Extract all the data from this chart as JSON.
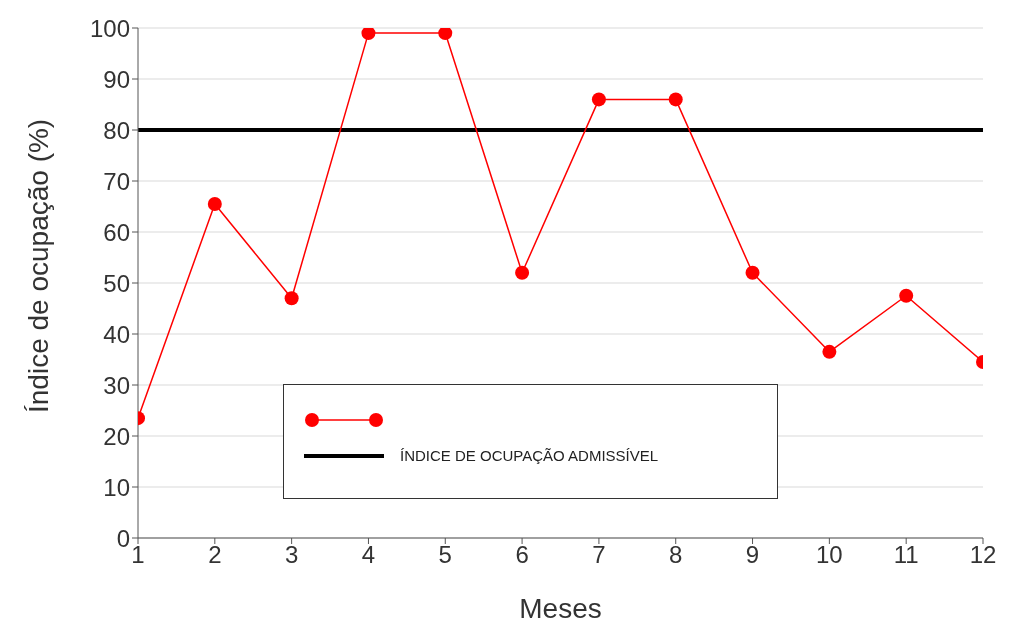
{
  "chart_data": {
    "type": "line",
    "xlabel": "Meses",
    "ylabel": "Índice de ocupação (%)",
    "x": [
      1,
      2,
      3,
      4,
      5,
      6,
      7,
      8,
      9,
      10,
      11,
      12
    ],
    "series": [
      {
        "color": "#ff0000",
        "values": [
          23.5,
          65.5,
          47,
          99,
          99,
          52,
          86,
          86,
          52,
          36.5,
          47.5,
          34.5
        ]
      }
    ],
    "xlim": [
      1,
      12
    ],
    "xticks": [
      1,
      2,
      3,
      4,
      5,
      6,
      7,
      8,
      9,
      10,
      11,
      12
    ],
    "ylim": [
      0,
      100
    ],
    "yticks": [
      0,
      10,
      20,
      30,
      40,
      50,
      60,
      70,
      80,
      90,
      100
    ],
    "ref_lines": [
      {
        "axis": "y",
        "value": 80,
        "label": "ÍNDICE DE OCUPAÇÃO ADMISSÍVEL",
        "color": "#000000"
      }
    ],
    "grid": "y",
    "legend": "bottom",
    "marker": "circle",
    "line_style": "solid"
  }
}
